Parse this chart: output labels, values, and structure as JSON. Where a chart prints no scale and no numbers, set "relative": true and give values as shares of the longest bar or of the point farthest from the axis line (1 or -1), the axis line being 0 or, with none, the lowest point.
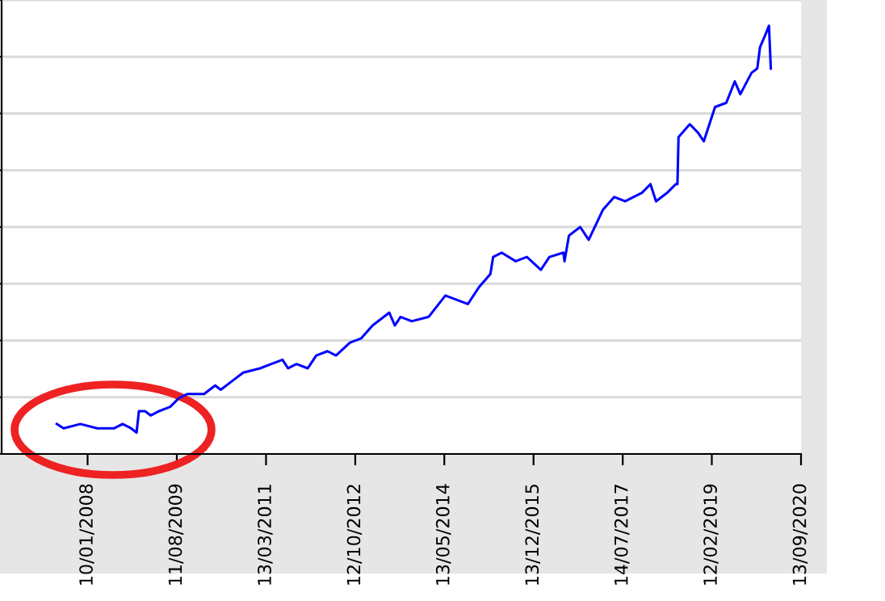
{
  "chart_data": {
    "type": "line",
    "relative": true,
    "grid": "y",
    "tick_labels": "x",
    "line_style": "solid",
    "marker": "none",
    "x": [
      "2007-06-24",
      "2007-08-07",
      "2007-11-24",
      "2008-03-13",
      "2008-07-01",
      "2008-08-24",
      "2008-10-18",
      "2008-11-23",
      "2008-12-08",
      "2009-01-17",
      "2009-02-22",
      "2009-04-18",
      "2009-06-29",
      "2009-08-23",
      "2009-10-17",
      "2010-02-04",
      "2010-04-17",
      "2010-05-23",
      "2010-08-04",
      "2010-10-16",
      "2011-02-02",
      "2011-04-16",
      "2011-06-28",
      "2011-08-03",
      "2011-09-27",
      "2011-12-09",
      "2012-02-02",
      "2012-04-15",
      "2012-06-09",
      "2012-09-08",
      "2012-11-20",
      "2013-02-01",
      "2013-05-21",
      "2013-06-26",
      "2013-08-02",
      "2013-10-14",
      "2014-01-31",
      "2014-05-20",
      "2014-08-01",
      "2014-10-13",
      "2014-12-25",
      "2015-03-08",
      "2015-03-26",
      "2015-05-20",
      "2015-08-19",
      "2015-10-31",
      "2016-01-30",
      "2016-03-25",
      "2016-06-24",
      "2016-07-01",
      "2016-07-30",
      "2016-10-11",
      "2016-12-05",
      "2017-03-07",
      "2017-05-19",
      "2017-07-30",
      "2017-11-16",
      "2018-01-10",
      "2018-02-15",
      "2018-04-29",
      "2018-06-23",
      "2018-07-04",
      "2018-07-11",
      "2018-09-22",
      "2018-11-15",
      "2018-12-22",
      "2019-03-05",
      "2019-05-17",
      "2019-07-11",
      "2019-08-16",
      "2019-10-28",
      "2019-12-04",
      "2019-12-22",
      "2020-01-27",
      "2020-02-18",
      "2020-03-01"
    ],
    "series": [
      {
        "color": "#0000ff",
        "values": [
          0.07,
          0.06,
          0.07,
          0.06,
          0.06,
          0.07,
          0.06,
          0.05,
          0.1,
          0.1,
          0.09,
          0.1,
          0.11,
          0.13,
          0.14,
          0.14,
          0.16,
          0.15,
          0.17,
          0.19,
          0.2,
          0.21,
          0.22,
          0.2,
          0.21,
          0.2,
          0.23,
          0.24,
          0.23,
          0.26,
          0.27,
          0.3,
          0.33,
          0.3,
          0.32,
          0.31,
          0.32,
          0.37,
          0.36,
          0.35,
          0.39,
          0.42,
          0.46,
          0.47,
          0.45,
          0.46,
          0.43,
          0.46,
          0.47,
          0.45,
          0.51,
          0.53,
          0.5,
          0.57,
          0.6,
          0.59,
          0.61,
          0.63,
          0.59,
          0.61,
          0.63,
          0.63,
          0.74,
          0.77,
          0.75,
          0.73,
          0.81,
          0.82,
          0.87,
          0.84,
          0.89,
          0.9,
          0.95,
          0.98,
          1,
          0.9
        ]
      }
    ],
    "xlim": [
      "2006-07-01",
      "2020-09-13"
    ],
    "xticks": [
      {
        "value": "2008-01-10",
        "label": "10/01/2008"
      },
      {
        "value": "2009-08-11",
        "label": "11/08/2009"
      },
      {
        "value": "2011-03-13",
        "label": "13/03/2011"
      },
      {
        "value": "2012-10-12",
        "label": "12/10/2012"
      },
      {
        "value": "2014-05-13",
        "label": "13/05/2014"
      },
      {
        "value": "2015-12-13",
        "label": "13/12/2015"
      },
      {
        "value": "2017-07-14",
        "label": "14/07/2017"
      },
      {
        "value": "2019-02-12",
        "label": "12/02/2019"
      },
      {
        "value": "2020-09-13",
        "label": "13/09/2020"
      }
    ]
  }
}
